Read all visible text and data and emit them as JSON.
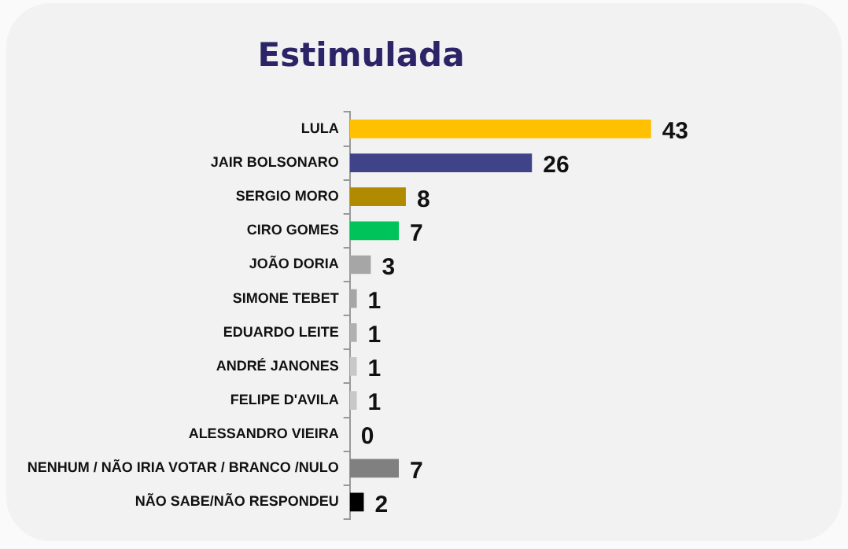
{
  "chart_data": {
    "type": "bar",
    "orientation": "horizontal",
    "title": "Estimulada",
    "categories": [
      "LULA",
      "JAIR BOLSONARO",
      "SERGIO MORO",
      "CIRO GOMES",
      "JOÃO DORIA",
      "SIMONE TEBET",
      "EDUARDO LEITE",
      "ANDRÉ JANONES",
      "FELIPE D'AVILA",
      "ALESSANDRO VIEIRA",
      "NENHUM / NÃO IRIA VOTAR / BRANCO /NULO",
      "NÃO SABE/NÃO RESPONDEU"
    ],
    "values": [
      43,
      26,
      8,
      7,
      3,
      1,
      1,
      1,
      1,
      0,
      7,
      2
    ],
    "colors": [
      "#ffc000",
      "#3f4489",
      "#b08a00",
      "#00c35a",
      "#a6a6a6",
      "#a6a6a6",
      "#b0b0b0",
      "#c8c8c8",
      "#c8c8c8",
      "#c8c8c8",
      "#808080",
      "#000000"
    ],
    "data_labels": true,
    "legend": false
  }
}
